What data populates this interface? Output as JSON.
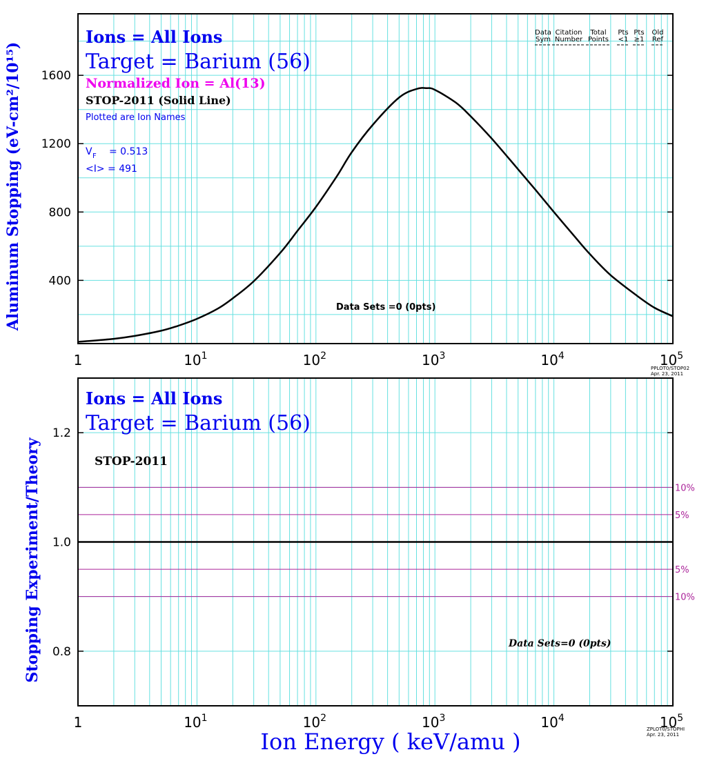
{
  "colors": {
    "grid": "#66e0e0",
    "blue": "#0000ee",
    "magenta": "#ee00ee",
    "purple": "#aa2299",
    "black": "#000000"
  },
  "top": {
    "ions": "Ions = All Ions",
    "target": "Target = Barium (56)",
    "normalized": "Normalized Ion = Al(13)",
    "stop": "STOP-2011 (Solid Line)",
    "plotted": "Plotted are Ion Names",
    "vf_label": "V",
    "vf_sub": "F",
    "vf_value": "= 0.513",
    "i_label": "<I> = 491",
    "datasets": "Data Sets =0 (0pts)",
    "legend": [
      {
        "l1": "Data",
        "l2": "Sym"
      },
      {
        "l1": "Citation",
        "l2": "Number"
      },
      {
        "l1": "Total",
        "l2": "Points"
      },
      {
        "l1": "Pts",
        "l2": "<1"
      },
      {
        "l1": "Pts",
        "l2": "≥1"
      },
      {
        "l1": "Old",
        "l2": "Ref"
      }
    ],
    "stamp1": "PPLOT0/STOP02",
    "stamp2": "Apr. 23, 2011"
  },
  "bottom": {
    "ions": "Ions = All Ions",
    "target": "Target = Barium (56)",
    "stop": "STOP-2011",
    "datasets": "Data Sets=0 (0pts)",
    "pct_labels": [
      "10%",
      "5%",
      "5%",
      "10%"
    ],
    "stamp1": "ZPLOT0/STOPHI",
    "stamp2": "Apr. 23, 2011"
  },
  "chart_data": [
    {
      "type": "line",
      "ylabel": "Aluminum Stopping (eV-cm²/10¹⁵)",
      "x_scale": "log",
      "xlim": [
        1,
        100000
      ],
      "ylim": [
        30,
        1960
      ],
      "x_ticks": [
        {
          "base": "1",
          "exp": ""
        },
        {
          "base": "10",
          "exp": "1"
        },
        {
          "base": "10",
          "exp": "2"
        },
        {
          "base": "10",
          "exp": "3"
        },
        {
          "base": "10",
          "exp": "4"
        },
        {
          "base": "10",
          "exp": "5"
        }
      ],
      "y_ticks": [
        "400",
        "800",
        "1200",
        "1600"
      ],
      "y_tick_values": [
        400,
        800,
        1200,
        1600
      ],
      "grid": true,
      "series": [
        {
          "x": [
            1,
            2,
            3,
            5,
            7,
            10,
            15,
            20,
            30,
            50,
            70,
            100,
            150,
            200,
            300,
            500,
            700,
            850,
            1000,
            1500,
            2000,
            3000,
            5000,
            7000,
            10000,
            15000,
            20000,
            30000,
            50000,
            70000,
            100000
          ],
          "y": [
            40,
            58,
            75,
            105,
            135,
            175,
            235,
            295,
            395,
            560,
            690,
            830,
            1010,
            1150,
            1310,
            1470,
            1520,
            1525,
            1515,
            1440,
            1360,
            1230,
            1050,
            930,
            800,
            655,
            555,
            430,
            310,
            240,
            190
          ]
        }
      ]
    },
    {
      "type": "line",
      "ylabel": "Stopping Experiment/Theory",
      "xlabel": "Ion Energy ( keV/amu )",
      "x_scale": "log",
      "xlim": [
        1,
        100000
      ],
      "ylim": [
        0.7,
        1.3
      ],
      "x_ticks": [
        {
          "base": "1",
          "exp": ""
        },
        {
          "base": "10",
          "exp": "1"
        },
        {
          "base": "10",
          "exp": "2"
        },
        {
          "base": "10",
          "exp": "3"
        },
        {
          "base": "10",
          "exp": "4"
        },
        {
          "base": "10",
          "exp": "5"
        }
      ],
      "y_ticks": [
        "0.8",
        "1.0",
        "1.2"
      ],
      "y_tick_values": [
        0.8,
        1.0,
        1.2
      ],
      "reference_lines": [
        1.1,
        1.05,
        0.95,
        0.9
      ],
      "grid": true,
      "series": [
        {
          "x": [
            1,
            100000
          ],
          "y": [
            1.0,
            1.0
          ]
        }
      ]
    }
  ]
}
